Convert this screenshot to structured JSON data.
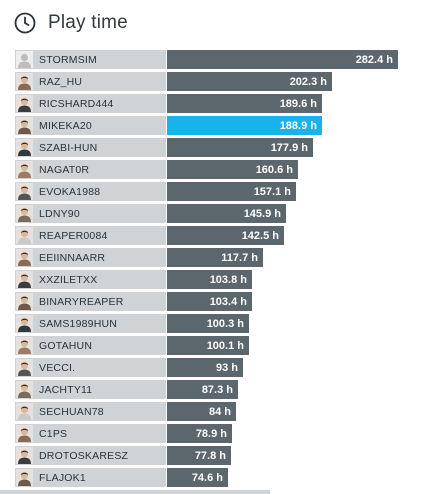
{
  "header": {
    "title": "Play time",
    "icon": "clock-icon"
  },
  "colors": {
    "label_bg": "#d0d3d6",
    "bar": "#5b666d",
    "highlight_bar": "#18b3ea"
  },
  "leaderboard": {
    "unit": "h",
    "max_value": 282.4,
    "rows": [
      {
        "name": "STORMSIM",
        "value": 282.4,
        "display": "282.4 h",
        "avatar": "default-avatar-icon"
      },
      {
        "name": "RAZ_HU",
        "value": 202.3,
        "display": "202.3 h",
        "avatar": "player-avatar-icon"
      },
      {
        "name": "RICSHARD444",
        "value": 189.6,
        "display": "189.6 h",
        "avatar": "player-avatar-icon"
      },
      {
        "name": "MIKEKA20",
        "value": 188.9,
        "display": "188.9 h",
        "avatar": "player-avatar-icon",
        "highlight": true
      },
      {
        "name": "SZABI-HUN",
        "value": 177.9,
        "display": "177.9 h",
        "avatar": "player-avatar-icon"
      },
      {
        "name": "NAGAT0R",
        "value": 160.6,
        "display": "160.6 h",
        "avatar": "player-avatar-icon"
      },
      {
        "name": "EVOKA1988",
        "value": 157.1,
        "display": "157.1 h",
        "avatar": "player-avatar-icon"
      },
      {
        "name": "LDNY90",
        "value": 145.9,
        "display": "145.9 h",
        "avatar": "player-avatar-icon"
      },
      {
        "name": "REAPER0084",
        "value": 142.5,
        "display": "142.5 h",
        "avatar": "player-avatar-icon"
      },
      {
        "name": "EEIINNAARR",
        "value": 117.7,
        "display": "117.7 h",
        "avatar": "player-avatar-icon"
      },
      {
        "name": "XXZILETXX",
        "value": 103.8,
        "display": "103.8 h",
        "avatar": "player-avatar-icon"
      },
      {
        "name": "BINARYREAPER",
        "value": 103.4,
        "display": "103.4 h",
        "avatar": "player-avatar-icon"
      },
      {
        "name": "SAMS1989HUN",
        "value": 100.3,
        "display": "100.3 h",
        "avatar": "player-avatar-icon"
      },
      {
        "name": "GOTAHUN",
        "value": 100.1,
        "display": "100.1 h",
        "avatar": "player-avatar-icon"
      },
      {
        "name": "VECCI.",
        "value": 93,
        "display": "93 h",
        "avatar": "player-avatar-icon"
      },
      {
        "name": "JACHTY11",
        "value": 87.3,
        "display": "87.3 h",
        "avatar": "player-avatar-icon"
      },
      {
        "name": "SECHUAN78",
        "value": 84,
        "display": "84 h",
        "avatar": "player-avatar-icon"
      },
      {
        "name": "C1PS",
        "value": 78.9,
        "display": "78.9 h",
        "avatar": "player-avatar-icon"
      },
      {
        "name": "DROTOSKARESZ",
        "value": 77.8,
        "display": "77.8 h",
        "avatar": "player-avatar-icon"
      },
      {
        "name": "FLAJOK1",
        "value": 74.6,
        "display": "74.6 h",
        "avatar": "player-avatar-icon"
      }
    ]
  }
}
